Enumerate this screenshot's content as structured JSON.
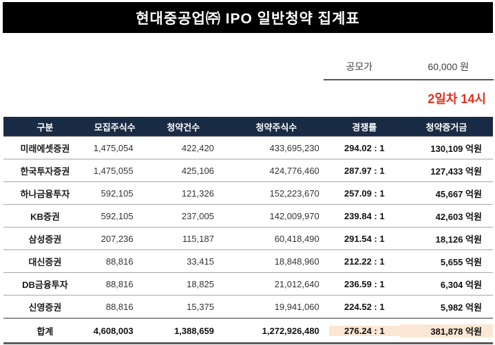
{
  "title": "현대중공업㈜ IPO 일반청약 집계표",
  "info": {
    "offer_price_label": "공모가",
    "offer_price_value": "60,000 원",
    "status_label": "2일차 14시"
  },
  "table": {
    "headers": [
      "구분",
      "모집주식수",
      "청약건수",
      "청약주식수",
      "경쟁률",
      "청약증거금"
    ],
    "rows": [
      {
        "name": "미래에셋증권",
        "shares_offered": "1,475,054",
        "subscriptions": "422,420",
        "shares_subscribed": "433,695,230",
        "ratio": "294.02 : 1",
        "deposit": "130,109 억원"
      },
      {
        "name": "한국투자증권",
        "shares_offered": "1,475,055",
        "subscriptions": "425,106",
        "shares_subscribed": "424,776,460",
        "ratio": "287.97 : 1",
        "deposit": "127,433 억원"
      },
      {
        "name": "하나금융투자",
        "shares_offered": "592,105",
        "subscriptions": "121,326",
        "shares_subscribed": "152,223,670",
        "ratio": "257.09 : 1",
        "deposit": "45,667 억원"
      },
      {
        "name": "KB증권",
        "shares_offered": "592,105",
        "subscriptions": "237,005",
        "shares_subscribed": "142,009,970",
        "ratio": "239.84 : 1",
        "deposit": "42,603 억원"
      },
      {
        "name": "삼성증권",
        "shares_offered": "207,236",
        "subscriptions": "115,187",
        "shares_subscribed": "60,418,490",
        "ratio": "291.54 : 1",
        "deposit": "18,126 억원"
      },
      {
        "name": "대신증권",
        "shares_offered": "88,816",
        "subscriptions": "33,415",
        "shares_subscribed": "18,848,960",
        "ratio": "212.22 : 1",
        "deposit": "5,655 억원"
      },
      {
        "name": "DB금융투자",
        "shares_offered": "88,816",
        "subscriptions": "18,825",
        "shares_subscribed": "21,012,640",
        "ratio": "236.59 : 1",
        "deposit": "6,304 억원"
      },
      {
        "name": "신영증권",
        "shares_offered": "88,816",
        "subscriptions": "15,375",
        "shares_subscribed": "19,941,060",
        "ratio": "224.52 : 1",
        "deposit": "5,982 억원"
      }
    ],
    "total": {
      "name": "합계",
      "shares_offered": "4,608,003",
      "subscriptions": "1,388,659",
      "shares_subscribed": "1,272,926,480",
      "ratio": "276.24 : 1",
      "deposit": "381,878 억원"
    }
  },
  "colors": {
    "title_bg": "#000000",
    "header_bg": "#1a2b45",
    "highlight_bg": "#fbe7d3",
    "accent_red": "#e0301e"
  }
}
